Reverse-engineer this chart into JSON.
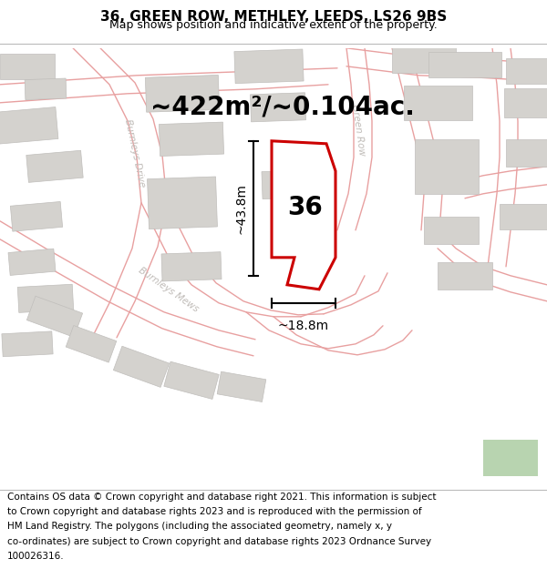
{
  "title_line1": "36, GREEN ROW, METHLEY, LEEDS, LS26 9BS",
  "title_line2": "Map shows position and indicative extent of the property.",
  "footer_lines": [
    "Contains OS data © Crown copyright and database right 2021. This information is subject",
    "to Crown copyright and database rights 2023 and is reproduced with the permission of",
    "HM Land Registry. The polygons (including the associated geometry, namely x, y",
    "co-ordinates) are subject to Crown copyright and database rights 2023 Ordnance Survey",
    "100026316."
  ],
  "area_label": "~422m²/~0.104ac.",
  "number_label": "36",
  "width_label": "~18.8m",
  "height_label": "~43.8m",
  "bg_color": "#f2f0ed",
  "road_color": "#e8a0a0",
  "building_fill": "#d4d2ce",
  "building_edge": "#c0bebb",
  "highlight_fill": "#ffffff",
  "highlight_edge": "#cc0000",
  "green_fill": "#b8d4b0",
  "road_label_color": "#c0bcb8",
  "title_fontsize": 11,
  "subtitle_fontsize": 9,
  "footer_fontsize": 7.5,
  "area_fontsize": 20,
  "number_fontsize": 20,
  "dim_fontsize": 10,
  "road_label_fontsize": 7.5
}
